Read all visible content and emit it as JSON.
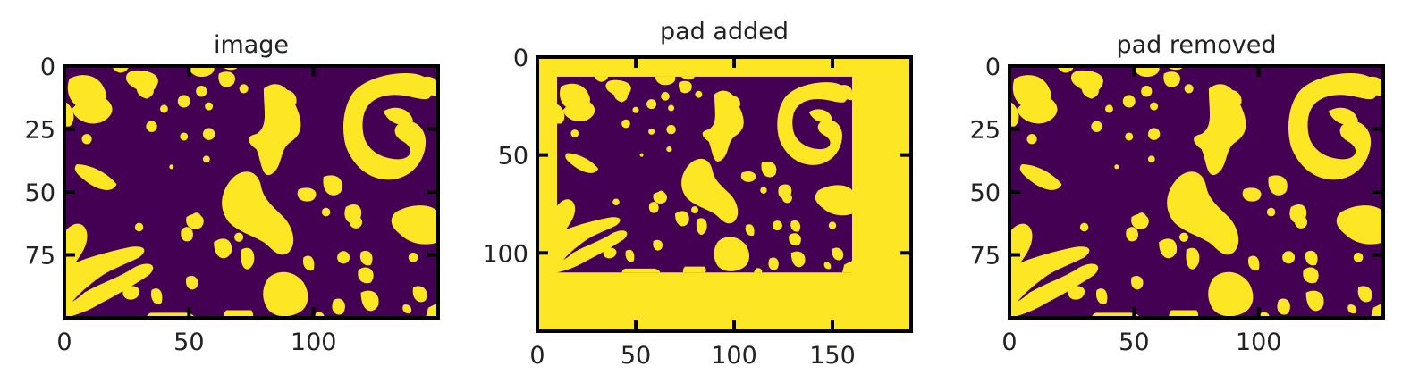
{
  "colors": {
    "background": "#440154",
    "foreground": "#fde725",
    "axes": "#000000"
  },
  "chart_data": [
    {
      "type": "heatmap",
      "title": "image",
      "colormap": "viridis (binary: purple / yellow)",
      "xlim": [
        0,
        150
      ],
      "ylim": [
        100,
        0
      ],
      "xticks": [
        "0",
        "50",
        "100"
      ],
      "yticks": [
        "0",
        "25",
        "50",
        "75"
      ],
      "xtick_values": [
        0,
        50,
        100
      ],
      "ytick_values": [
        0,
        25,
        50,
        75
      ],
      "image_extent": {
        "x": [
          0,
          150
        ],
        "y": [
          0,
          100
        ]
      },
      "grid": false
    },
    {
      "type": "heatmap",
      "title": "pad added",
      "colormap": "viridis (binary: purple / yellow)",
      "xlim": [
        0,
        190
      ],
      "ylim": [
        140,
        0
      ],
      "xticks": [
        "0",
        "50",
        "100",
        "150"
      ],
      "yticks": [
        "0",
        "50",
        "100"
      ],
      "xtick_values": [
        0,
        50,
        100,
        150
      ],
      "ytick_values": [
        0,
        50,
        100
      ],
      "inner_image_extent": {
        "x": [
          10,
          160
        ],
        "y": [
          10,
          110
        ]
      },
      "pad_value": "yellow",
      "grid": false
    },
    {
      "type": "heatmap",
      "title": "pad removed",
      "colormap": "viridis (binary: purple / yellow)",
      "xlim": [
        0,
        150
      ],
      "ylim": [
        100,
        0
      ],
      "xticks": [
        "0",
        "50",
        "100"
      ],
      "yticks": [
        "0",
        "25",
        "50",
        "75"
      ],
      "xtick_values": [
        0,
        50,
        100
      ],
      "ytick_values": [
        0,
        25,
        50,
        75
      ],
      "image_extent": {
        "x": [
          0,
          150
        ],
        "y": [
          0,
          100
        ]
      },
      "grid": false
    }
  ]
}
